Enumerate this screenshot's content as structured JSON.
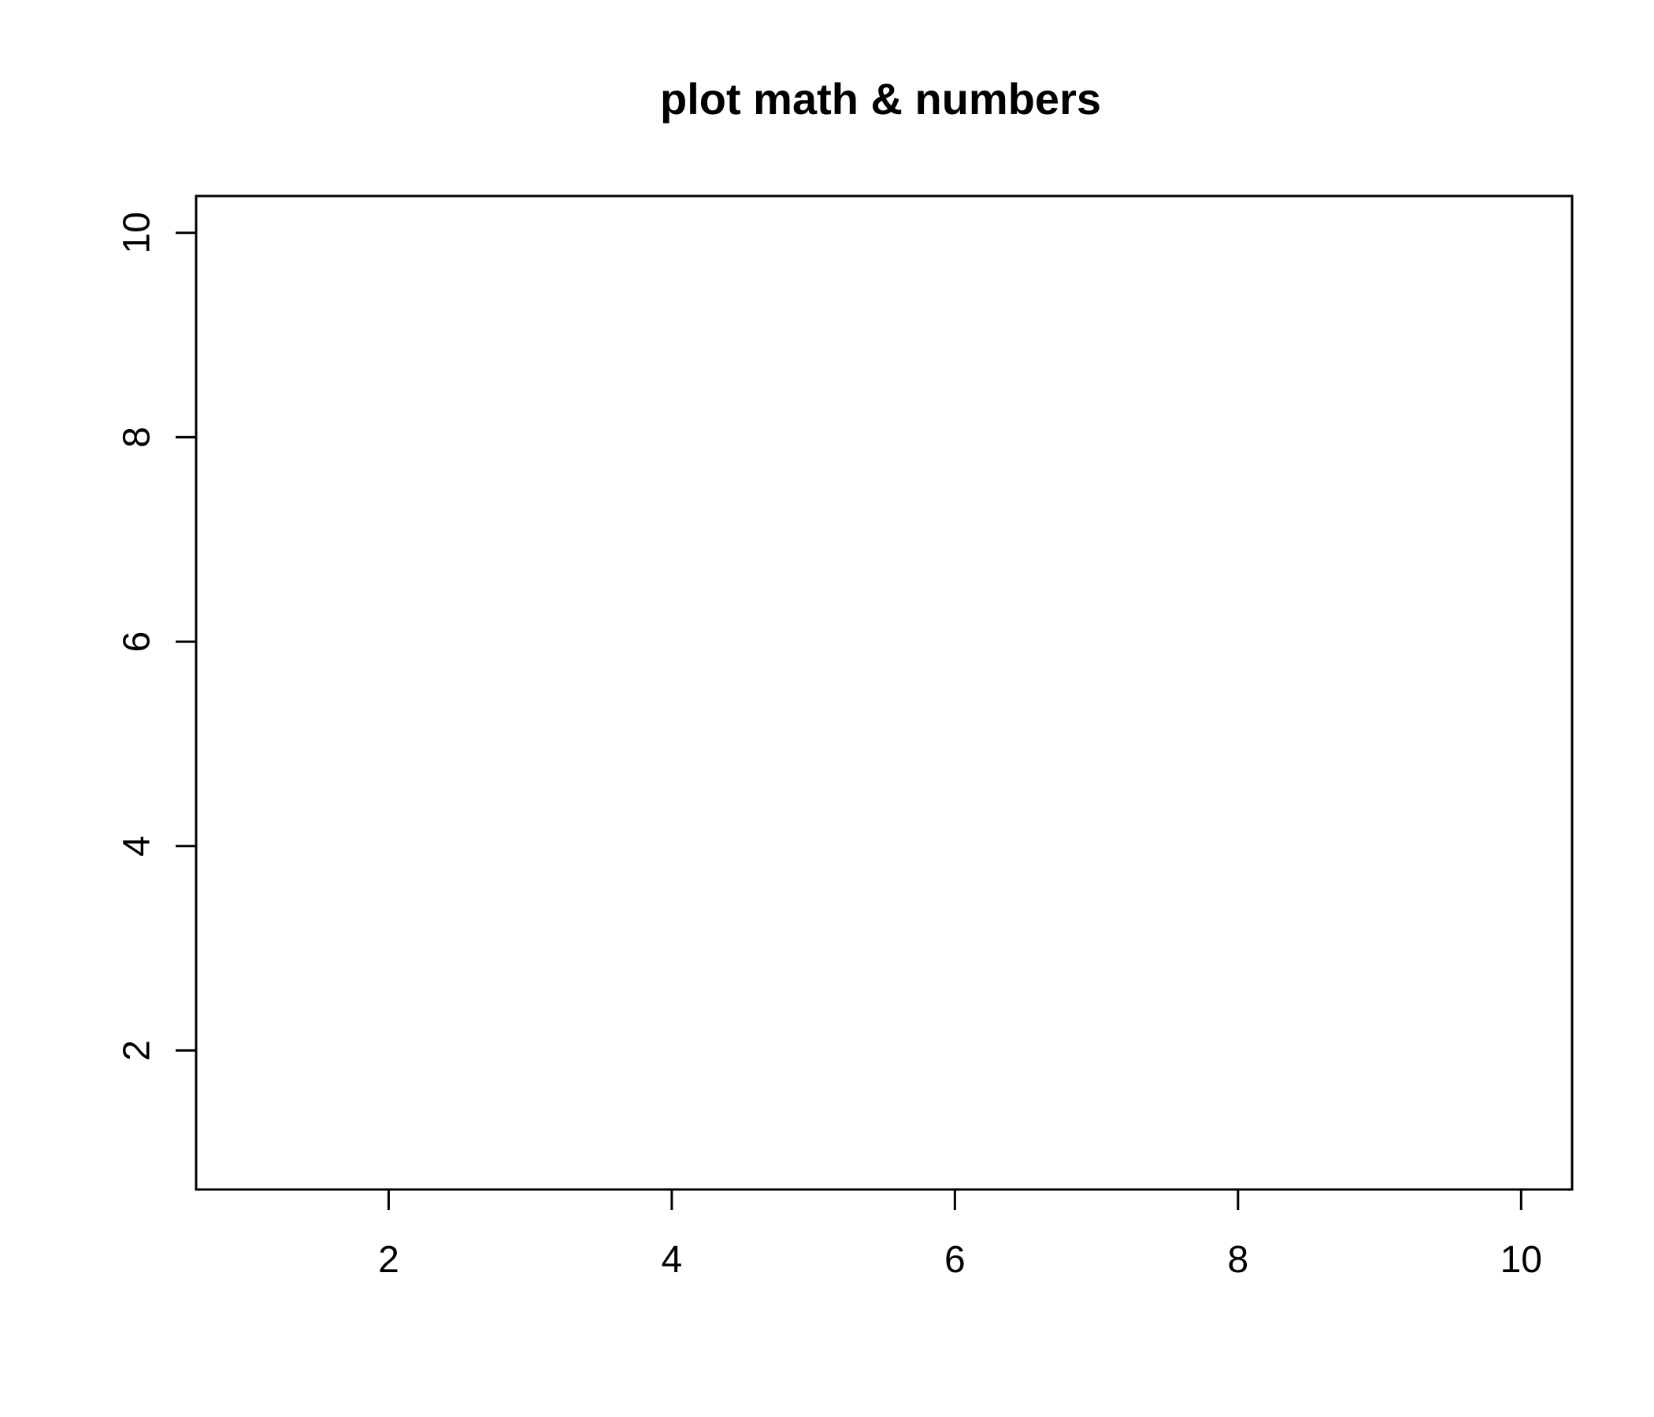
{
  "chart_data": {
    "type": "scatter",
    "title": "plot math & numbers",
    "xlabel": "",
    "ylabel": "",
    "xlim": [
      0.64,
      10.36
    ],
    "ylim": [
      0.64,
      10.36
    ],
    "x_ticks": [
      2,
      4,
      6,
      8,
      10
    ],
    "y_ticks": [
      2,
      4,
      6,
      8,
      10
    ],
    "x_tick_labels": [
      "2",
      "4",
      "6",
      "8",
      "10"
    ],
    "y_tick_labels": [
      "2",
      "4",
      "6",
      "8",
      "10"
    ],
    "series": [],
    "grid": false,
    "box": true,
    "colors": {
      "axis": "#000000",
      "background": "#ffffff"
    }
  }
}
